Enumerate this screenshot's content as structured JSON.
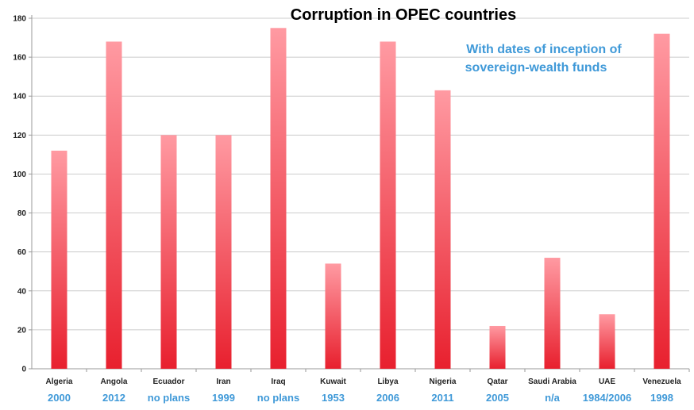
{
  "chart_data": {
    "type": "bar",
    "title": "Corruption in OPEC countries",
    "annotation": [
      "With dates of inception of",
      "sovereign-wealth funds"
    ],
    "categories": [
      "Algeria",
      "Angola",
      "Ecuador",
      "Iran",
      "Iraq",
      "Kuwait",
      "Libya",
      "Nigeria",
      "Qatar",
      "Saudi Arabia",
      "UAE",
      "Venezuela"
    ],
    "values": [
      112,
      168,
      120,
      120,
      175,
      54,
      168,
      143,
      22,
      57,
      28,
      172
    ],
    "sublabels": [
      "2000",
      "2012",
      "no plans",
      "1999",
      "no plans",
      "1953",
      "2006",
      "2011",
      "2005",
      "n/a",
      "1984/2006",
      "1998"
    ],
    "xlabel": "",
    "ylabel": "",
    "ylim": [
      0,
      180
    ],
    "yticks": [
      0,
      20,
      40,
      60,
      80,
      100,
      120,
      140,
      160,
      180
    ],
    "grid": true,
    "legend": "none",
    "colors": {
      "bar_light": "#ff9aa2",
      "bar_dark": "#e8202e",
      "grid": "#cccccc",
      "axis": "#999999",
      "accent_text": "#3f99d8"
    }
  }
}
